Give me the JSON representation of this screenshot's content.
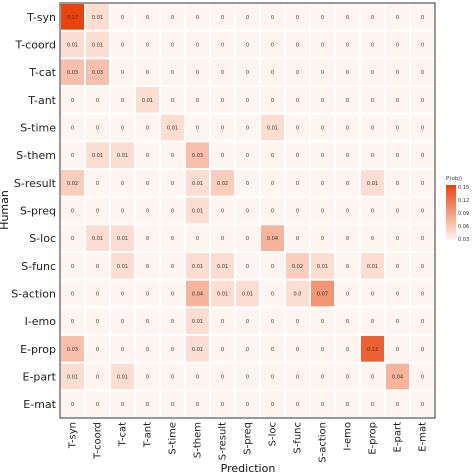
{
  "chart_data": {
    "type": "heatmap",
    "xlabel": "Prediction",
    "ylabel": "Human",
    "x_categories": [
      "T-syn",
      "T-coord",
      "T-cat",
      "T-ant",
      "S-time",
      "S-them",
      "S-result",
      "S-preq",
      "S-loc",
      "S-func",
      "S-action",
      "I-emo",
      "E-prop",
      "E-part",
      "E-mat"
    ],
    "y_categories": [
      "T-syn",
      "T-coord",
      "T-cat",
      "T-ant",
      "S-time",
      "S-them",
      "S-result",
      "S-preq",
      "S-loc",
      "S-func",
      "S-action",
      "I-emo",
      "E-prop",
      "E-part",
      "E-mat"
    ],
    "cell_labels": [
      [
        "0.17",
        "0.01",
        "0",
        "0",
        "0",
        "0",
        "0",
        "0",
        "0",
        "0",
        "0",
        "0",
        "0",
        "0",
        "0"
      ],
      [
        "0.01",
        "0.01",
        "0",
        "0",
        "0",
        "0",
        "0",
        "0",
        "0",
        "0",
        "0",
        "0",
        "0",
        "0",
        "0"
      ],
      [
        "0.03",
        "0.03",
        "0",
        "0",
        "0",
        "0",
        "0",
        "0",
        "0",
        "0",
        "0",
        "0",
        "0",
        "0",
        "0"
      ],
      [
        "0",
        "0",
        "0",
        "0.01",
        "0",
        "0",
        "0",
        "0",
        "0",
        "0",
        "0",
        "0",
        "0",
        "0",
        "0"
      ],
      [
        "0",
        "0",
        "0",
        "0",
        "0.01",
        "0",
        "0",
        "0",
        "0.01",
        "0",
        "0",
        "0",
        "0",
        "0",
        "0"
      ],
      [
        "0",
        "0.01",
        "0.01",
        "0",
        "0",
        "0.03",
        "0",
        "0",
        "0",
        "0",
        "0",
        "0",
        "0",
        "0",
        "0"
      ],
      [
        "0.02",
        "0",
        "0",
        "0",
        "0",
        "0.01",
        "0.02",
        "0",
        "0",
        "0",
        "0",
        "0",
        "0.01",
        "0",
        "0"
      ],
      [
        "0",
        "0",
        "0",
        "0",
        "0",
        "0.01",
        "0",
        "0",
        "0",
        "0",
        "0",
        "0",
        "0",
        "0",
        "0"
      ],
      [
        "0",
        "0.01",
        "0.01",
        "0",
        "0",
        "0",
        "0",
        "0",
        "0.04",
        "0",
        "0",
        "0",
        "0",
        "0",
        "0"
      ],
      [
        "0",
        "0",
        "0.01",
        "0",
        "0",
        "0.01",
        "0.01",
        "0",
        "0",
        "0.02",
        "0.01",
        "0",
        "0.01",
        "0",
        "0"
      ],
      [
        "0",
        "0",
        "0",
        "0",
        "0",
        "0.04",
        "0.01",
        "0.01",
        "0",
        "0.0",
        "0.07",
        "0",
        "0",
        "0",
        "0"
      ],
      [
        "0",
        "0",
        "0",
        "0",
        "0",
        "0.01",
        "0",
        "0",
        "0",
        "0",
        "0",
        "0",
        "0",
        "0",
        "0"
      ],
      [
        "0.03",
        "0",
        "0",
        "0",
        "0",
        "0.01",
        "0",
        "0",
        "0",
        "0",
        "0",
        "0",
        "0.13",
        "0",
        "0"
      ],
      [
        "0.01",
        "0",
        "0.01",
        "0",
        "0",
        "0",
        "0",
        "0",
        "0",
        "0",
        "0",
        "0",
        "0",
        "0.04",
        "0"
      ],
      [
        "0",
        "0",
        "0",
        "0",
        "0",
        "0",
        "0",
        "0",
        "0",
        "0",
        "0",
        "0",
        "0",
        "0",
        "0"
      ]
    ],
    "values": [
      [
        0.17,
        0.01,
        0,
        0,
        0,
        0,
        0,
        0,
        0,
        0,
        0,
        0,
        0,
        0,
        0
      ],
      [
        0.01,
        0.01,
        0,
        0,
        0,
        0,
        0,
        0,
        0,
        0,
        0,
        0,
        0,
        0,
        0
      ],
      [
        0.03,
        0.03,
        0,
        0,
        0,
        0,
        0,
        0,
        0,
        0,
        0,
        0,
        0,
        0,
        0
      ],
      [
        0,
        0,
        0,
        0.01,
        0,
        0,
        0,
        0,
        0,
        0,
        0,
        0,
        0,
        0,
        0
      ],
      [
        0,
        0,
        0,
        0,
        0.01,
        0,
        0,
        0,
        0.01,
        0,
        0,
        0,
        0,
        0,
        0
      ],
      [
        0,
        0.01,
        0.01,
        0,
        0,
        0.03,
        0,
        0,
        0,
        0,
        0,
        0,
        0,
        0,
        0
      ],
      [
        0.02,
        0,
        0,
        0,
        0,
        0.01,
        0.02,
        0,
        0,
        0,
        0,
        0,
        0.01,
        0,
        0
      ],
      [
        0,
        0,
        0,
        0,
        0,
        0.01,
        0,
        0,
        0,
        0,
        0,
        0,
        0,
        0,
        0
      ],
      [
        0,
        0.01,
        0.01,
        0,
        0,
        0,
        0,
        0,
        0.04,
        0,
        0,
        0,
        0,
        0,
        0
      ],
      [
        0,
        0,
        0.01,
        0,
        0,
        0.01,
        0.01,
        0,
        0,
        0.02,
        0.01,
        0,
        0.01,
        0,
        0
      ],
      [
        0,
        0,
        0,
        0,
        0,
        0.04,
        0.01,
        0.01,
        0,
        0.01,
        0.07,
        0,
        0,
        0,
        0
      ],
      [
        0,
        0,
        0,
        0,
        0,
        0.01,
        0,
        0,
        0,
        0,
        0,
        0,
        0,
        0,
        0
      ],
      [
        0.03,
        0,
        0,
        0,
        0,
        0.01,
        0,
        0,
        0,
        0,
        0,
        0,
        0.13,
        0,
        0
      ],
      [
        0.01,
        0,
        0.01,
        0,
        0,
        0,
        0,
        0,
        0,
        0,
        0,
        0,
        0,
        0.04,
        0
      ],
      [
        0,
        0,
        0,
        0,
        0,
        0,
        0,
        0,
        0,
        0,
        0,
        0,
        0,
        0,
        0
      ]
    ],
    "color_range": [
      0,
      0.17
    ],
    "colors": {
      "low": "#fff5f0",
      "high": "#e8430c"
    },
    "legend": {
      "title": "P(obj)",
      "ticks": [
        "0.15",
        "0.12",
        "0.09",
        "0.06",
        "0.03"
      ],
      "position": "right"
    }
  }
}
